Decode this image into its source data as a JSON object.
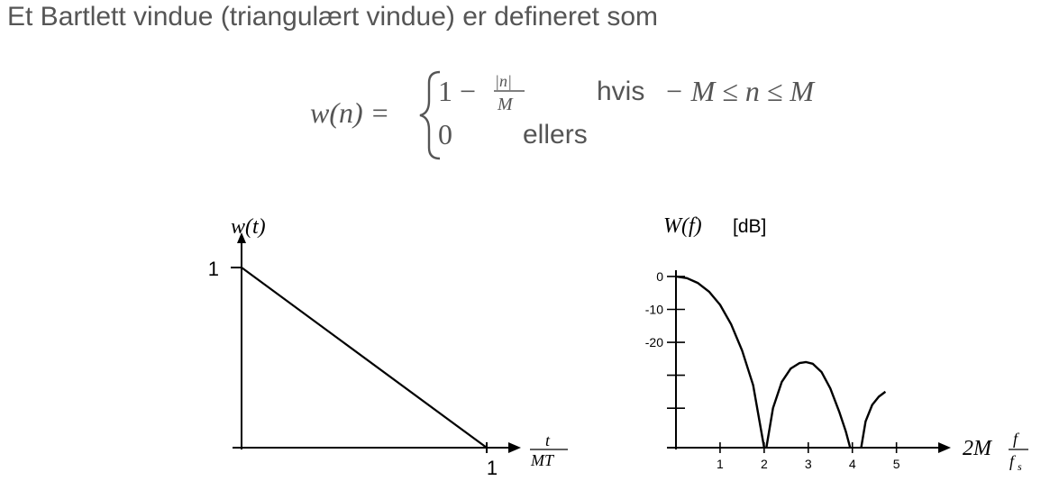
{
  "intro_text": "Et Bartlett vindue (triangulært vindue) er defineret som",
  "formula": {
    "lhs": "w(n) =",
    "case1_one": "1 −",
    "case1_num": "|n|",
    "case1_den": "M",
    "case1_word": "hvis",
    "case1_cond": "− M ≤ n ≤ M",
    "case2_value": "0",
    "case2_word": "ellers"
  },
  "chart_data": [
    {
      "type": "line",
      "title": "",
      "ylabel": "w(t)",
      "xlabel_num": "t",
      "xlabel_den": "MT",
      "x_ticks": [
        "1"
      ],
      "y_ticks": [
        "1"
      ],
      "xlim": [
        0,
        1
      ],
      "ylim": [
        0,
        1
      ],
      "series": [
        {
          "x": [
            0,
            1
          ],
          "y": [
            1,
            0
          ]
        }
      ]
    },
    {
      "type": "line",
      "title": "",
      "ylabel_math": "W(f)",
      "ylabel_unit": "[dB]",
      "xlabel_prefix": "2M",
      "xlabel_num": "f",
      "xlabel_den": "f",
      "xlabel_den_sub": "s",
      "x_ticks": [
        "1",
        "2",
        "3",
        "4",
        "5"
      ],
      "y_ticks": [
        "0",
        "-10",
        "-20"
      ],
      "xlim": [
        0,
        5.6
      ],
      "ylim": [
        -52,
        3
      ],
      "series": [
        {
          "x": [
            0,
            0.25,
            0.5,
            0.75,
            1.0,
            1.25,
            1.5,
            1.75,
            2.0
          ],
          "y": [
            0,
            -0.5,
            -2,
            -4.6,
            -8.6,
            -14.5,
            -22.5,
            -33,
            -52
          ]
        },
        {
          "x": [
            2.05,
            2.2,
            2.4,
            2.6,
            2.8,
            2.95,
            3.1,
            3.3,
            3.5,
            3.7,
            3.85,
            3.95
          ],
          "y": [
            -52,
            -40,
            -32,
            -28,
            -26.3,
            -26,
            -26.5,
            -29,
            -34,
            -41,
            -47,
            -52
          ]
        },
        {
          "x": [
            4.2,
            4.3,
            4.45,
            4.6,
            4.75
          ],
          "y": [
            -52,
            -44,
            -39,
            -36.5,
            -35
          ]
        }
      ]
    }
  ]
}
